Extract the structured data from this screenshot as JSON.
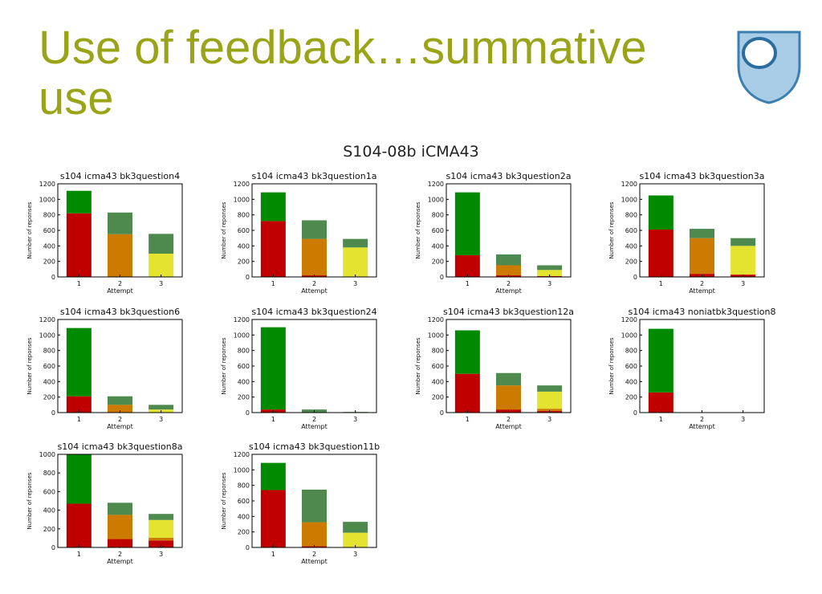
{
  "slide": {
    "title": "Use of feedback…summative use",
    "figure_title": "S104-08b iCMA43"
  },
  "colors": {
    "title": "#9aa418",
    "incorrect": "#c00000",
    "orange": "#cc7a00",
    "yellow": "#e3e330",
    "correct": "#008a00",
    "correct_later": "#4e8a4e",
    "logo_fill": "#a9cde6",
    "logo_stroke": "#3b7fb0"
  },
  "chart_data": [
    {
      "type": "bar",
      "title": "s104 icma43 bk3question4",
      "xlabel": "Attempt",
      "ylabel": "Number of reponses",
      "categories": [
        "1",
        "2",
        "3"
      ],
      "ylim": [
        0,
        1200
      ],
      "yticks": [
        0,
        200,
        400,
        600,
        800,
        1000,
        1200
      ],
      "series": [
        {
          "values": [
            820,
            0,
            0
          ]
        },
        {
          "values": [
            0,
            550,
            0
          ]
        },
        {
          "values": [
            0,
            0,
            300
          ]
        },
        {
          "values": [
            290,
            0,
            0
          ]
        },
        {
          "values": [
            0,
            280,
            255
          ]
        }
      ]
    },
    {
      "type": "bar",
      "title": "s104 icma43 bk3question1a",
      "xlabel": "Attempt",
      "ylabel": "Number of reponses",
      "categories": [
        "1",
        "2",
        "3"
      ],
      "ylim": [
        0,
        1200
      ],
      "yticks": [
        0,
        200,
        400,
        600,
        800,
        1000,
        1200
      ],
      "series": [
        {
          "values": [
            720,
            20,
            0
          ]
        },
        {
          "values": [
            0,
            470,
            0
          ]
        },
        {
          "values": [
            0,
            0,
            380
          ]
        },
        {
          "values": [
            370,
            0,
            0
          ]
        },
        {
          "values": [
            0,
            240,
            110
          ]
        }
      ]
    },
    {
      "type": "bar",
      "title": "s104 icma43 bk3question2a",
      "xlabel": "Attempt",
      "ylabel": "Number of reponses",
      "categories": [
        "1",
        "2",
        "3"
      ],
      "ylim": [
        0,
        1200
      ],
      "yticks": [
        0,
        200,
        400,
        600,
        800,
        1000,
        1200
      ],
      "series": [
        {
          "values": [
            280,
            20,
            10
          ]
        },
        {
          "values": [
            0,
            130,
            0
          ]
        },
        {
          "values": [
            0,
            0,
            80
          ]
        },
        {
          "values": [
            810,
            0,
            0
          ]
        },
        {
          "values": [
            0,
            140,
            60
          ]
        }
      ]
    },
    {
      "type": "bar",
      "title": "s104 icma43 bk3question3a",
      "xlabel": "Attempt",
      "ylabel": "Number of reponses",
      "categories": [
        "1",
        "2",
        "3"
      ],
      "ylim": [
        0,
        1200
      ],
      "yticks": [
        0,
        200,
        400,
        600,
        800,
        1000,
        1200
      ],
      "series": [
        {
          "values": [
            610,
            40,
            30
          ]
        },
        {
          "values": [
            0,
            460,
            0
          ]
        },
        {
          "values": [
            0,
            0,
            370
          ]
        },
        {
          "values": [
            440,
            0,
            0
          ]
        },
        {
          "values": [
            0,
            120,
            100
          ]
        }
      ]
    },
    {
      "type": "bar",
      "title": "s104 icma43 bk3question6",
      "xlabel": "Attempt",
      "ylabel": "Number of reponses",
      "categories": [
        "1",
        "2",
        "3"
      ],
      "ylim": [
        0,
        1200
      ],
      "yticks": [
        0,
        200,
        400,
        600,
        800,
        1000,
        1200
      ],
      "series": [
        {
          "values": [
            210,
            0,
            0
          ]
        },
        {
          "values": [
            0,
            100,
            0
          ]
        },
        {
          "values": [
            0,
            0,
            40
          ]
        },
        {
          "values": [
            880,
            0,
            0
          ]
        },
        {
          "values": [
            0,
            110,
            60
          ]
        }
      ]
    },
    {
      "type": "bar",
      "title": "s104 icma43 bk3question24",
      "xlabel": "Attempt",
      "ylabel": "Number of reponses",
      "categories": [
        "1",
        "2",
        "3"
      ],
      "ylim": [
        0,
        1200
      ],
      "yticks": [
        0,
        200,
        400,
        600,
        800,
        1000,
        1200
      ],
      "series": [
        {
          "values": [
            40,
            0,
            0
          ]
        },
        {
          "values": [
            0,
            0,
            0
          ]
        },
        {
          "values": [
            0,
            0,
            0
          ]
        },
        {
          "values": [
            1060,
            0,
            0
          ]
        },
        {
          "values": [
            0,
            40,
            8
          ]
        }
      ]
    },
    {
      "type": "bar",
      "title": "s104 icma43 bk3question12a",
      "xlabel": "Attempt",
      "ylabel": "Number of reponses",
      "categories": [
        "1",
        "2",
        "3"
      ],
      "ylim": [
        0,
        1200
      ],
      "yticks": [
        0,
        200,
        400,
        600,
        800,
        1000,
        1200
      ],
      "series": [
        {
          "values": [
            500,
            40,
            20
          ]
        },
        {
          "values": [
            0,
            310,
            30
          ]
        },
        {
          "values": [
            0,
            0,
            220
          ]
        },
        {
          "values": [
            560,
            0,
            0
          ]
        },
        {
          "values": [
            0,
            160,
            80
          ]
        }
      ]
    },
    {
      "type": "bar",
      "title": "s104 icma43 noniatbk3question8",
      "xlabel": "Attempt",
      "ylabel": "Number of reponses",
      "categories": [
        "1",
        "2",
        "3"
      ],
      "ylim": [
        0,
        1200
      ],
      "yticks": [
        0,
        200,
        400,
        600,
        800,
        1000,
        1200
      ],
      "series": [
        {
          "values": [
            260,
            0,
            0
          ]
        },
        {
          "values": [
            0,
            0,
            0
          ]
        },
        {
          "values": [
            0,
            0,
            0
          ]
        },
        {
          "values": [
            820,
            0,
            0
          ]
        },
        {
          "values": [
            0,
            0,
            0
          ]
        }
      ]
    },
    {
      "type": "bar",
      "title": "s104 icma43 bk3question8a",
      "xlabel": "Attempt",
      "ylabel": "Number of reponses",
      "categories": [
        "1",
        "2",
        "3"
      ],
      "ylim": [
        0,
        1000
      ],
      "yticks": [
        0,
        200,
        400,
        600,
        800,
        1000
      ],
      "series": [
        {
          "values": [
            470,
            90,
            75
          ]
        },
        {
          "values": [
            0,
            260,
            30
          ]
        },
        {
          "values": [
            0,
            0,
            190
          ]
        },
        {
          "values": [
            530,
            0,
            0
          ]
        },
        {
          "values": [
            0,
            130,
            65
          ]
        }
      ]
    },
    {
      "type": "bar",
      "title": "s104 icma43 bk3question11b",
      "xlabel": "Attempt",
      "ylabel": "Number of reponses",
      "categories": [
        "1",
        "2",
        "3"
      ],
      "ylim": [
        0,
        1200
      ],
      "yticks": [
        0,
        200,
        400,
        600,
        800,
        1000,
        1200
      ],
      "series": [
        {
          "values": [
            740,
            15,
            0
          ]
        },
        {
          "values": [
            0,
            310,
            0
          ]
        },
        {
          "values": [
            0,
            0,
            190
          ]
        },
        {
          "values": [
            350,
            0,
            0
          ]
        },
        {
          "values": [
            0,
            420,
            140
          ]
        }
      ]
    }
  ]
}
